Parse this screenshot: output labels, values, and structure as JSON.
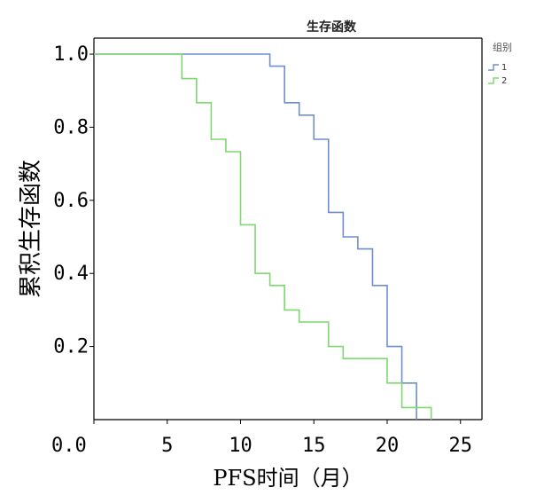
{
  "chart_data": {
    "type": "line",
    "subtype": "step",
    "title": "生存函数",
    "xlabel": "PFS时间（月）",
    "ylabel": "累积生存函数",
    "xlim": [
      0,
      26.5
    ],
    "ylim": [
      0,
      1.0
    ],
    "x_ticks": [
      0,
      5,
      10,
      15,
      20,
      25
    ],
    "x_tick_labels": [
      "0.0",
      "5",
      "10",
      "15",
      "20",
      "25"
    ],
    "y_ticks": [
      0.2,
      0.4,
      0.6,
      0.8,
      1.0
    ],
    "y_tick_labels": [
      "0.2",
      "0.4",
      "0.6",
      "0.8",
      "1.0"
    ],
    "legend": {
      "title": "组别",
      "placement": "top-right"
    },
    "series": [
      {
        "name": "1",
        "color": "#6f8ecd",
        "x": [
          0,
          12,
          13,
          14,
          15,
          16,
          17,
          18,
          19,
          20,
          21,
          22
        ],
        "y": [
          1.0,
          0.967,
          0.867,
          0.833,
          0.767,
          0.567,
          0.5,
          0.467,
          0.367,
          0.2,
          0.1,
          0.0
        ]
      },
      {
        "name": "2",
        "color": "#7dd96e",
        "x": [
          0,
          6,
          7,
          8,
          9,
          10,
          11,
          12,
          13,
          14,
          16,
          17,
          20,
          21,
          23
        ],
        "y": [
          1.0,
          0.933,
          0.867,
          0.767,
          0.733,
          0.533,
          0.4,
          0.367,
          0.3,
          0.267,
          0.2,
          0.167,
          0.1,
          0.033,
          0.0
        ]
      }
    ]
  }
}
